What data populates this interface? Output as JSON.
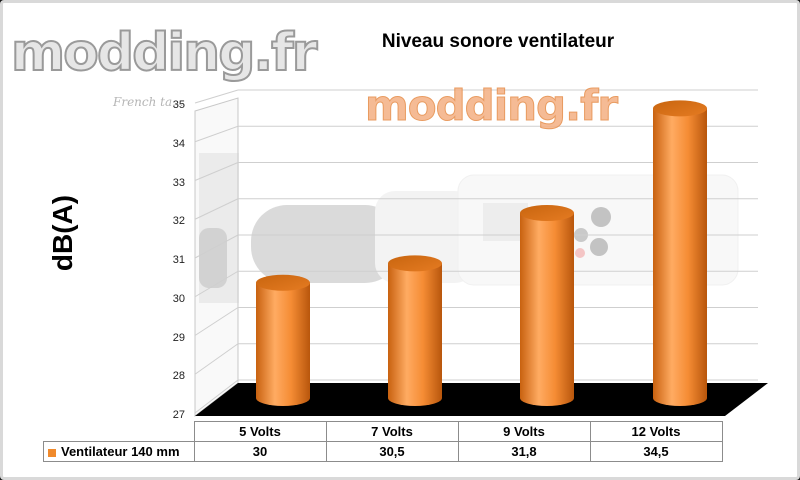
{
  "watermark": {
    "logo": "modding.fr",
    "tagline": "French ta...",
    "center": "modding.fr"
  },
  "chart_data": {
    "type": "bar",
    "title": "Niveau sonore ventilateur",
    "xlabel": "",
    "ylabel": "dB(A)",
    "ylim": [
      27,
      35
    ],
    "yticks": [
      27,
      28,
      29,
      30,
      31,
      32,
      33,
      34,
      35
    ],
    "categories": [
      "5 Volts",
      "7 Volts",
      "9 Volts",
      "12 Volts"
    ],
    "series": [
      {
        "name": "Ventilateur 140 mm",
        "values": [
          "30",
          "30,5",
          "31,8",
          "34,5"
        ],
        "color": "#f08a2c"
      }
    ],
    "legend": "data-table",
    "grid": true
  }
}
